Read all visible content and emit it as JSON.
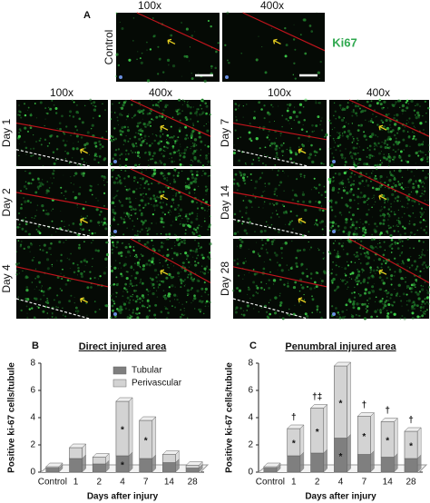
{
  "panel_a": {
    "label": "A",
    "columns": [
      "100x",
      "400x"
    ],
    "row_label": "Control",
    "stain_label": "Ki67"
  },
  "panel_grid": {
    "left_columns": [
      "100x",
      "400x"
    ],
    "right_columns": [
      "100x",
      "400x"
    ],
    "left_rows": [
      "Day 1",
      "Day 2",
      "Day 4"
    ],
    "right_rows": [
      "Day 7",
      "Day 14",
      "Day 28"
    ]
  },
  "chart_data": [
    {
      "type": "bar",
      "label": "B",
      "title": "Direct injured area",
      "xlabel": "Days after injury",
      "ylabel": "Positive ki-67 cells/tubule",
      "categories": [
        "Control",
        "1",
        "2",
        "4",
        "7",
        "14",
        "28"
      ],
      "stacked": true,
      "legend": "top",
      "series": [
        {
          "name": "Tubular",
          "color": "#7f7f7f",
          "values": [
            0.3,
            1.0,
            0.6,
            1.2,
            1.0,
            0.7,
            0.3
          ]
        },
        {
          "name": "Perivascular",
          "color": "#d3d3d3",
          "values": [
            0.1,
            0.8,
            0.5,
            4.0,
            2.8,
            0.6,
            0.2
          ]
        }
      ],
      "ylim": [
        0,
        8
      ],
      "yticks": [
        0,
        2,
        4,
        6,
        8
      ],
      "annotations": [
        {
          "category": 3,
          "series": 0,
          "text": "*"
        },
        {
          "category": 3,
          "series": 1,
          "text": "*"
        },
        {
          "category": 4,
          "series": 1,
          "text": "*"
        }
      ]
    },
    {
      "type": "bar",
      "label": "C",
      "title": "Penumbral injured area",
      "xlabel": "Days after injury",
      "ylabel": "Positive ki-67 cells/tubule",
      "categories": [
        "Control",
        "1",
        "2",
        "4",
        "7",
        "14",
        "28"
      ],
      "stacked": true,
      "series": [
        {
          "color": "#7f7f7f",
          "values": [
            0.3,
            1.2,
            1.4,
            2.5,
            1.3,
            1.1,
            1.0
          ]
        },
        {
          "color": "#d3d3d3",
          "values": [
            0.1,
            2.0,
            3.3,
            5.3,
            2.8,
            2.6,
            2.0
          ]
        }
      ],
      "ylim": [
        0,
        8
      ],
      "yticks": [
        0,
        2,
        4,
        6,
        8
      ],
      "annotations": [
        {
          "category": 1,
          "series": 1,
          "text": "*"
        },
        {
          "category": 2,
          "series": 1,
          "text": "*"
        },
        {
          "category": 3,
          "series": 0,
          "text": "*"
        },
        {
          "category": 3,
          "series": 1,
          "text": "*"
        },
        {
          "category": 4,
          "series": 1,
          "text": "*"
        },
        {
          "category": 5,
          "series": 1,
          "text": "*"
        },
        {
          "category": 6,
          "series": 1,
          "text": "*"
        },
        {
          "category": 1,
          "text": "†"
        },
        {
          "category": 2,
          "text": "†‡"
        },
        {
          "category": 4,
          "text": "†"
        },
        {
          "category": 5,
          "text": "†"
        },
        {
          "category": 6,
          "text": "†"
        }
      ]
    }
  ]
}
